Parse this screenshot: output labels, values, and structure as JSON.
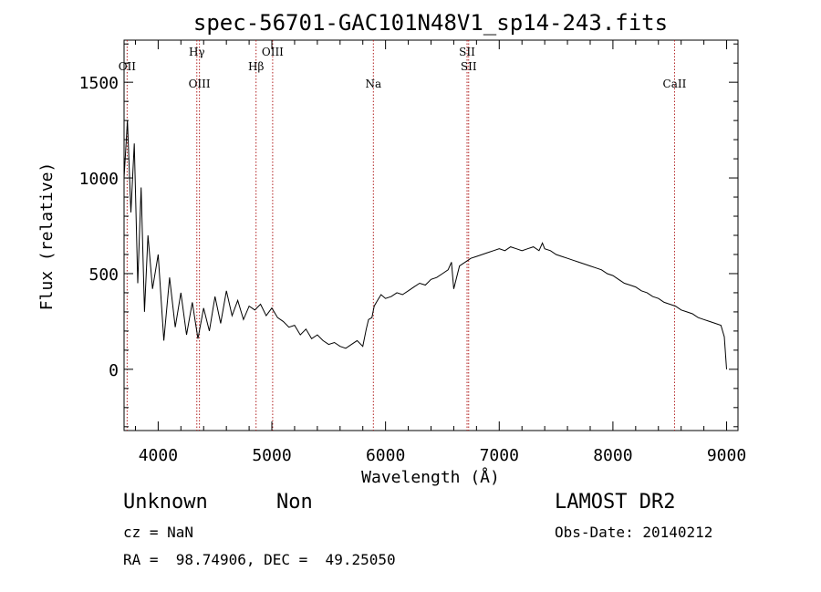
{
  "chart_data": {
    "type": "line",
    "title": "spec-56701-GAC101N48V1_sp14-243.fits",
    "xlabel": "Wavelength (Å)",
    "ylabel": "Flux (relative)",
    "xlim": [
      3700,
      9100
    ],
    "ylim": [
      -320,
      1720
    ],
    "x_ticks": [
      4000,
      5000,
      6000,
      7000,
      8000,
      9000
    ],
    "x_tick_labels": [
      "4000",
      "5000",
      "6000",
      "7000",
      "8000",
      "9000"
    ],
    "y_ticks": [
      0,
      500,
      1000,
      1500
    ],
    "y_tick_labels": [
      "0",
      "500",
      "1000",
      "1500"
    ],
    "grid": false,
    "line_color": "#000000",
    "marker_color": "#b22222",
    "series": [
      {
        "x": [
          3700,
          3730,
          3760,
          3790,
          3820,
          3850,
          3880,
          3910,
          3950,
          4000,
          4050,
          4100,
          4150,
          4200,
          4250,
          4300,
          4350,
          4400,
          4450,
          4500,
          4550,
          4600,
          4650,
          4700,
          4750,
          4800,
          4850,
          4900,
          4950,
          5000,
          5050,
          5100,
          5150,
          5200,
          5250,
          5300,
          5350,
          5400,
          5450,
          5500,
          5550,
          5600,
          5650,
          5700,
          5750,
          5800,
          5830,
          5850,
          5880,
          5900,
          5930,
          5960,
          6000,
          6050,
          6100,
          6150,
          6200,
          6250,
          6300,
          6350,
          6400,
          6450,
          6500,
          6550,
          6580,
          6600,
          6650,
          6700,
          6750,
          6800,
          6850,
          6900,
          6950,
          7000,
          7050,
          7100,
          7150,
          7200,
          7250,
          7300,
          7350,
          7380,
          7400,
          7450,
          7500,
          7550,
          7600,
          7650,
          7700,
          7750,
          7800,
          7850,
          7900,
          7950,
          8000,
          8050,
          8100,
          8150,
          8200,
          8250,
          8300,
          8350,
          8400,
          8450,
          8500,
          8550,
          8600,
          8650,
          8700,
          8750,
          8800,
          8850,
          8900,
          8950,
          8980,
          9000
        ],
        "y": [
          1000,
          1300,
          820,
          1180,
          450,
          950,
          300,
          700,
          420,
          600,
          150,
          480,
          220,
          400,
          180,
          350,
          160,
          320,
          200,
          380,
          240,
          410,
          280,
          360,
          260,
          330,
          310,
          340,
          280,
          320,
          270,
          250,
          220,
          230,
          180,
          210,
          160,
          180,
          150,
          130,
          140,
          120,
          110,
          130,
          150,
          120,
          210,
          260,
          270,
          330,
          360,
          390,
          370,
          380,
          400,
          390,
          410,
          430,
          450,
          440,
          470,
          480,
          500,
          520,
          560,
          420,
          540,
          560,
          580,
          590,
          600,
          610,
          620,
          630,
          620,
          640,
          630,
          620,
          630,
          640,
          620,
          660,
          630,
          620,
          600,
          590,
          580,
          570,
          560,
          550,
          540,
          530,
          520,
          500,
          490,
          470,
          450,
          440,
          430,
          410,
          400,
          380,
          370,
          350,
          340,
          330,
          310,
          300,
          290,
          270,
          260,
          250,
          240,
          230,
          170,
          0
        ]
      }
    ],
    "lines": [
      {
        "label": "OII",
        "x": 3727,
        "row": "upper"
      },
      {
        "label": "Hγ",
        "x": 4340,
        "row": "top"
      },
      {
        "label": "OIII",
        "x": 4363,
        "row": "lower"
      },
      {
        "label": "Hβ",
        "x": 4861,
        "row": "upper"
      },
      {
        "label": "OIII",
        "x": 5007,
        "row": "top"
      },
      {
        "label": "Na",
        "x": 5893,
        "row": "lower"
      },
      {
        "label": "SII",
        "x": 6717,
        "row": "top"
      },
      {
        "label": "SII",
        "x": 6731,
        "row": "upper"
      },
      {
        "label": "CaII",
        "x": 8542,
        "row": "lower"
      }
    ]
  },
  "info": {
    "class": "Unknown",
    "subclass": "Non",
    "survey": "LAMOST DR2",
    "cz": "cz = NaN",
    "obs_date": "Obs-Date: 20140212",
    "coords": "RA =  98.74906, DEC =  49.25050"
  }
}
